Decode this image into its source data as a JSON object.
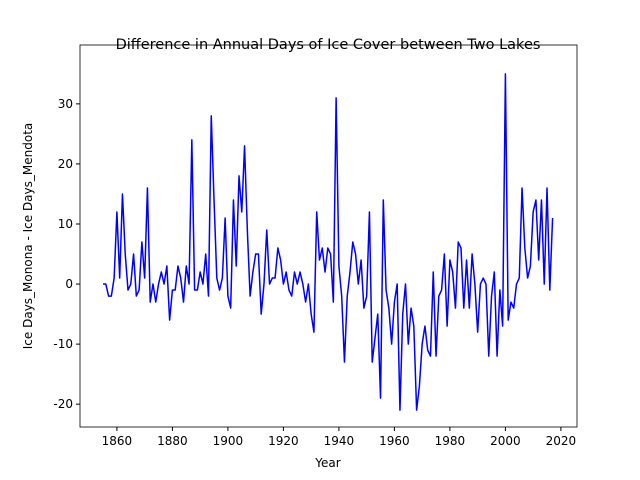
{
  "chart_data": {
    "type": "line",
    "title": "Difference in Annual Days of Ice Cover between Two Lakes",
    "xlabel": "Year",
    "ylabel": "Ice Days_Monona - Ice Days_Mendota",
    "x": [
      1855,
      1856,
      1857,
      1858,
      1859,
      1860,
      1861,
      1862,
      1863,
      1864,
      1865,
      1866,
      1867,
      1868,
      1869,
      1870,
      1871,
      1872,
      1873,
      1874,
      1875,
      1876,
      1877,
      1878,
      1879,
      1880,
      1881,
      1882,
      1883,
      1884,
      1885,
      1886,
      1887,
      1888,
      1889,
      1890,
      1891,
      1892,
      1893,
      1894,
      1895,
      1896,
      1897,
      1898,
      1899,
      1900,
      1901,
      1902,
      1903,
      1904,
      1905,
      1906,
      1907,
      1908,
      1909,
      1910,
      1911,
      1912,
      1913,
      1914,
      1915,
      1916,
      1917,
      1918,
      1919,
      1920,
      1921,
      1922,
      1923,
      1924,
      1925,
      1926,
      1927,
      1928,
      1929,
      1930,
      1931,
      1932,
      1933,
      1934,
      1935,
      1936,
      1937,
      1938,
      1939,
      1940,
      1941,
      1942,
      1943,
      1944,
      1945,
      1946,
      1947,
      1948,
      1949,
      1950,
      1951,
      1952,
      1953,
      1954,
      1955,
      1956,
      1957,
      1958,
      1959,
      1960,
      1961,
      1962,
      1963,
      1964,
      1965,
      1966,
      1967,
      1968,
      1969,
      1970,
      1971,
      1972,
      1973,
      1974,
      1975,
      1976,
      1977,
      1978,
      1979,
      1980,
      1981,
      1982,
      1983,
      1984,
      1985,
      1986,
      1987,
      1988,
      1989,
      1990,
      1991,
      1992,
      1993,
      1994,
      1995,
      1996,
      1997,
      1998,
      1999,
      2000,
      2001,
      2002,
      2003,
      2004,
      2005,
      2006,
      2007,
      2008,
      2009,
      2010,
      2011,
      2012,
      2013,
      2014,
      2015,
      2016,
      2017
    ],
    "series": [
      {
        "color": "#0000ff",
        "values": [
          0,
          0,
          -2,
          -2,
          1,
          12,
          1,
          15,
          5,
          -1,
          0,
          5,
          -2,
          -1,
          7,
          1,
          16,
          -3,
          0,
          -3,
          0,
          2,
          0,
          3,
          -6,
          -1,
          -1,
          3,
          1,
          -3,
          3,
          0,
          24,
          -1,
          -1,
          2,
          0,
          5,
          -2,
          28,
          14,
          1,
          -1,
          1,
          11,
          -2,
          -4,
          14,
          3,
          18,
          12,
          23,
          9,
          -2,
          2,
          5,
          5,
          -5,
          0,
          9,
          0,
          1,
          1,
          6,
          4,
          0,
          2,
          -1,
          -2,
          2,
          0,
          2,
          0,
          -3,
          0,
          -5,
          -8,
          12,
          4,
          6,
          2,
          6,
          5,
          -3,
          31,
          3,
          -2,
          -13,
          -2,
          2,
          7,
          5,
          0,
          4,
          -4,
          -2,
          12,
          -13,
          -9,
          -5,
          -19,
          14,
          -1,
          -4,
          -10,
          -3,
          0,
          -21,
          -5,
          0,
          -10,
          -4,
          -7,
          -21,
          -17,
          -10,
          -7,
          -11,
          -12,
          2,
          -12,
          -2,
          -1,
          5,
          -7,
          4,
          2,
          -4,
          7,
          6,
          -4,
          4,
          -4,
          5,
          0,
          -8,
          0,
          1,
          0,
          -12,
          -2,
          2,
          -12,
          -1,
          -7,
          35,
          -6,
          -3,
          -4,
          0,
          1,
          16,
          6,
          1,
          3,
          12,
          14,
          4,
          14,
          0,
          16,
          -1,
          11
        ]
      }
    ],
    "xlim": [
      1846.7,
      2025.8
    ],
    "ylim": [
      -23.8,
      39.8
    ],
    "xticks": [
      1860,
      1880,
      1900,
      1920,
      1940,
      1960,
      1980,
      2000,
      2020
    ],
    "yticks": [
      -20,
      -10,
      0,
      10,
      20,
      30
    ]
  }
}
